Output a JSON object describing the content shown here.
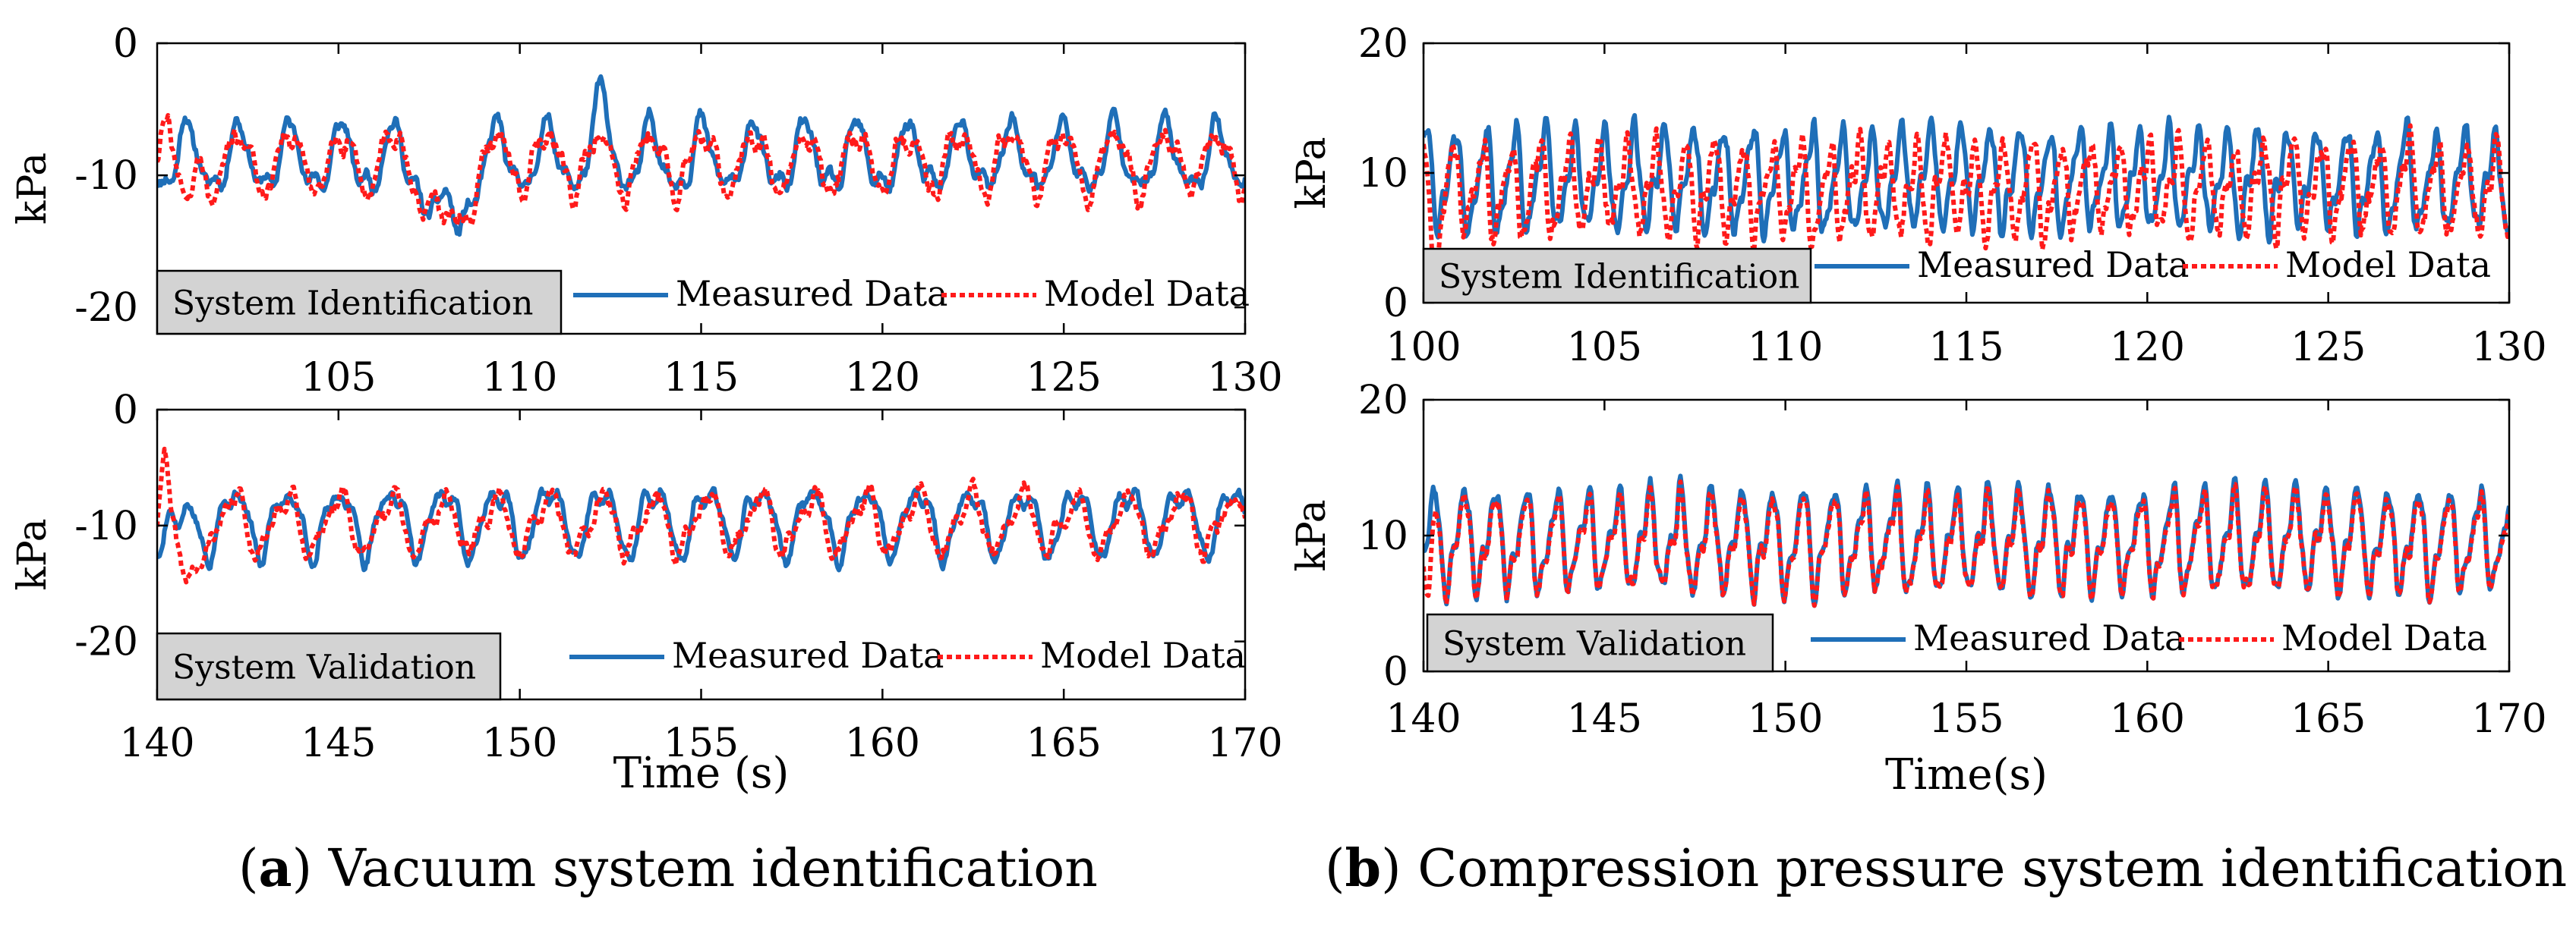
{
  "colors": {
    "measured": "#1f6fb8",
    "model": "#ff1a1a",
    "label_box": "#d3d3d3"
  },
  "chart_data": [
    {
      "type": "line",
      "title": "",
      "xlabel": "",
      "ylabel": "kPa",
      "xlim": [
        100,
        130
      ],
      "ylim": [
        -22,
        0
      ],
      "xticks": [
        105,
        110,
        115,
        120,
        125,
        130
      ],
      "yticks": [
        0,
        -10,
        -20
      ],
      "label_box": "System Identification",
      "legend": [
        "Measured Data",
        "Model Data"
      ],
      "series": [
        {
          "name": "Measured Data",
          "style": "solid",
          "mean": -8.8,
          "amp": 2.3,
          "period": 1.42,
          "noise": 0.9,
          "seed": 11,
          "events": [
            {
              "t": 108,
              "w": 0.6,
              "d": -5.5
            },
            {
              "t": 112.3,
              "w": 0.25,
              "d": 3
            }
          ]
        },
        {
          "name": "Model Data",
          "style": "dotted",
          "mean": -8.9,
          "amp": 2.1,
          "period": 1.42,
          "noise": 1.1,
          "seed": 27,
          "events": [
            {
              "t": 108,
              "w": 0.6,
              "d": -5.8
            },
            {
              "t": 100.2,
              "w": 0.2,
              "d": 6
            },
            {
              "t": 100.8,
              "w": 0.3,
              "d": -4
            }
          ]
        }
      ]
    },
    {
      "type": "line",
      "title": "",
      "xlabel": "Time (s)",
      "ylabel": "kPa",
      "xlim": [
        140,
        170
      ],
      "ylim": [
        -25,
        0
      ],
      "xticks": [
        140,
        145,
        150,
        155,
        160,
        165,
        170
      ],
      "yticks": [
        0,
        -10,
        -20
      ],
      "label_box": "System Validation",
      "legend": [
        "Measured Data",
        "Model Data"
      ],
      "series": [
        {
          "name": "Measured Data",
          "style": "solid",
          "mean": -9.5,
          "amp": 2.6,
          "period": 1.45,
          "noise": 0.8,
          "seed": 5,
          "events": [
            {
              "t": 140.6,
              "w": 0.3,
              "d": -2
            }
          ]
        },
        {
          "name": "Model Data",
          "style": "dotted",
          "mean": -9.8,
          "amp": 2.2,
          "period": 1.45,
          "noise": 1.1,
          "seed": 41,
          "events": [
            {
              "t": 140.2,
              "w": 0.15,
              "d": 7
            },
            {
              "t": 140.8,
              "w": 0.3,
              "d": -7
            }
          ]
        }
      ]
    },
    {
      "type": "line",
      "title": "",
      "xlabel": "",
      "ylabel": "kPa",
      "xlim": [
        100,
        130
      ],
      "ylim": [
        0,
        20
      ],
      "xticks": [
        100,
        105,
        110,
        115,
        120,
        125,
        130
      ],
      "yticks": [
        20,
        10,
        0
      ],
      "label_box": "System Identification",
      "legend": [
        "Measured Data",
        "Model Data"
      ],
      "series": [
        {
          "name": "Measured Data",
          "style": "solid",
          "mean": 9.4,
          "amp": 3.3,
          "period": 0.82,
          "noise": 1.0,
          "seed": 8,
          "events": []
        },
        {
          "name": "Model Data",
          "style": "dotted",
          "mean": 8.9,
          "amp": 3.0,
          "period": 0.8,
          "noise": 1.6,
          "seed": 63,
          "events": [
            {
              "t": 100.3,
              "w": 0.2,
              "d": -4
            }
          ]
        }
      ]
    },
    {
      "type": "line",
      "title": "",
      "xlabel": "Time(s)",
      "ylabel": "kPa",
      "xlim": [
        140,
        170
      ],
      "ylim": [
        0,
        20
      ],
      "xticks": [
        140,
        145,
        150,
        155,
        160,
        165,
        170
      ],
      "yticks": [
        20,
        10,
        0
      ],
      "label_box": "System Validation",
      "legend": [
        "Measured Data",
        "Model Data"
      ],
      "series": [
        {
          "name": "Measured Data",
          "style": "solid",
          "mean": 9.6,
          "amp": 3.2,
          "period": 0.85,
          "noise": 0.9,
          "seed": 19,
          "events": []
        },
        {
          "name": "Model Data",
          "style": "dotted",
          "mean": 9.4,
          "amp": 3.0,
          "period": 0.85,
          "noise": 1.0,
          "seed": 19,
          "events": [
            {
              "t": 140.15,
              "w": 0.15,
              "d": -4
            }
          ]
        }
      ]
    }
  ],
  "captions": [
    {
      "letter": "a",
      "text": "Vacuum system identification"
    },
    {
      "letter": "b",
      "text": "Compression pressure system identification"
    }
  ]
}
